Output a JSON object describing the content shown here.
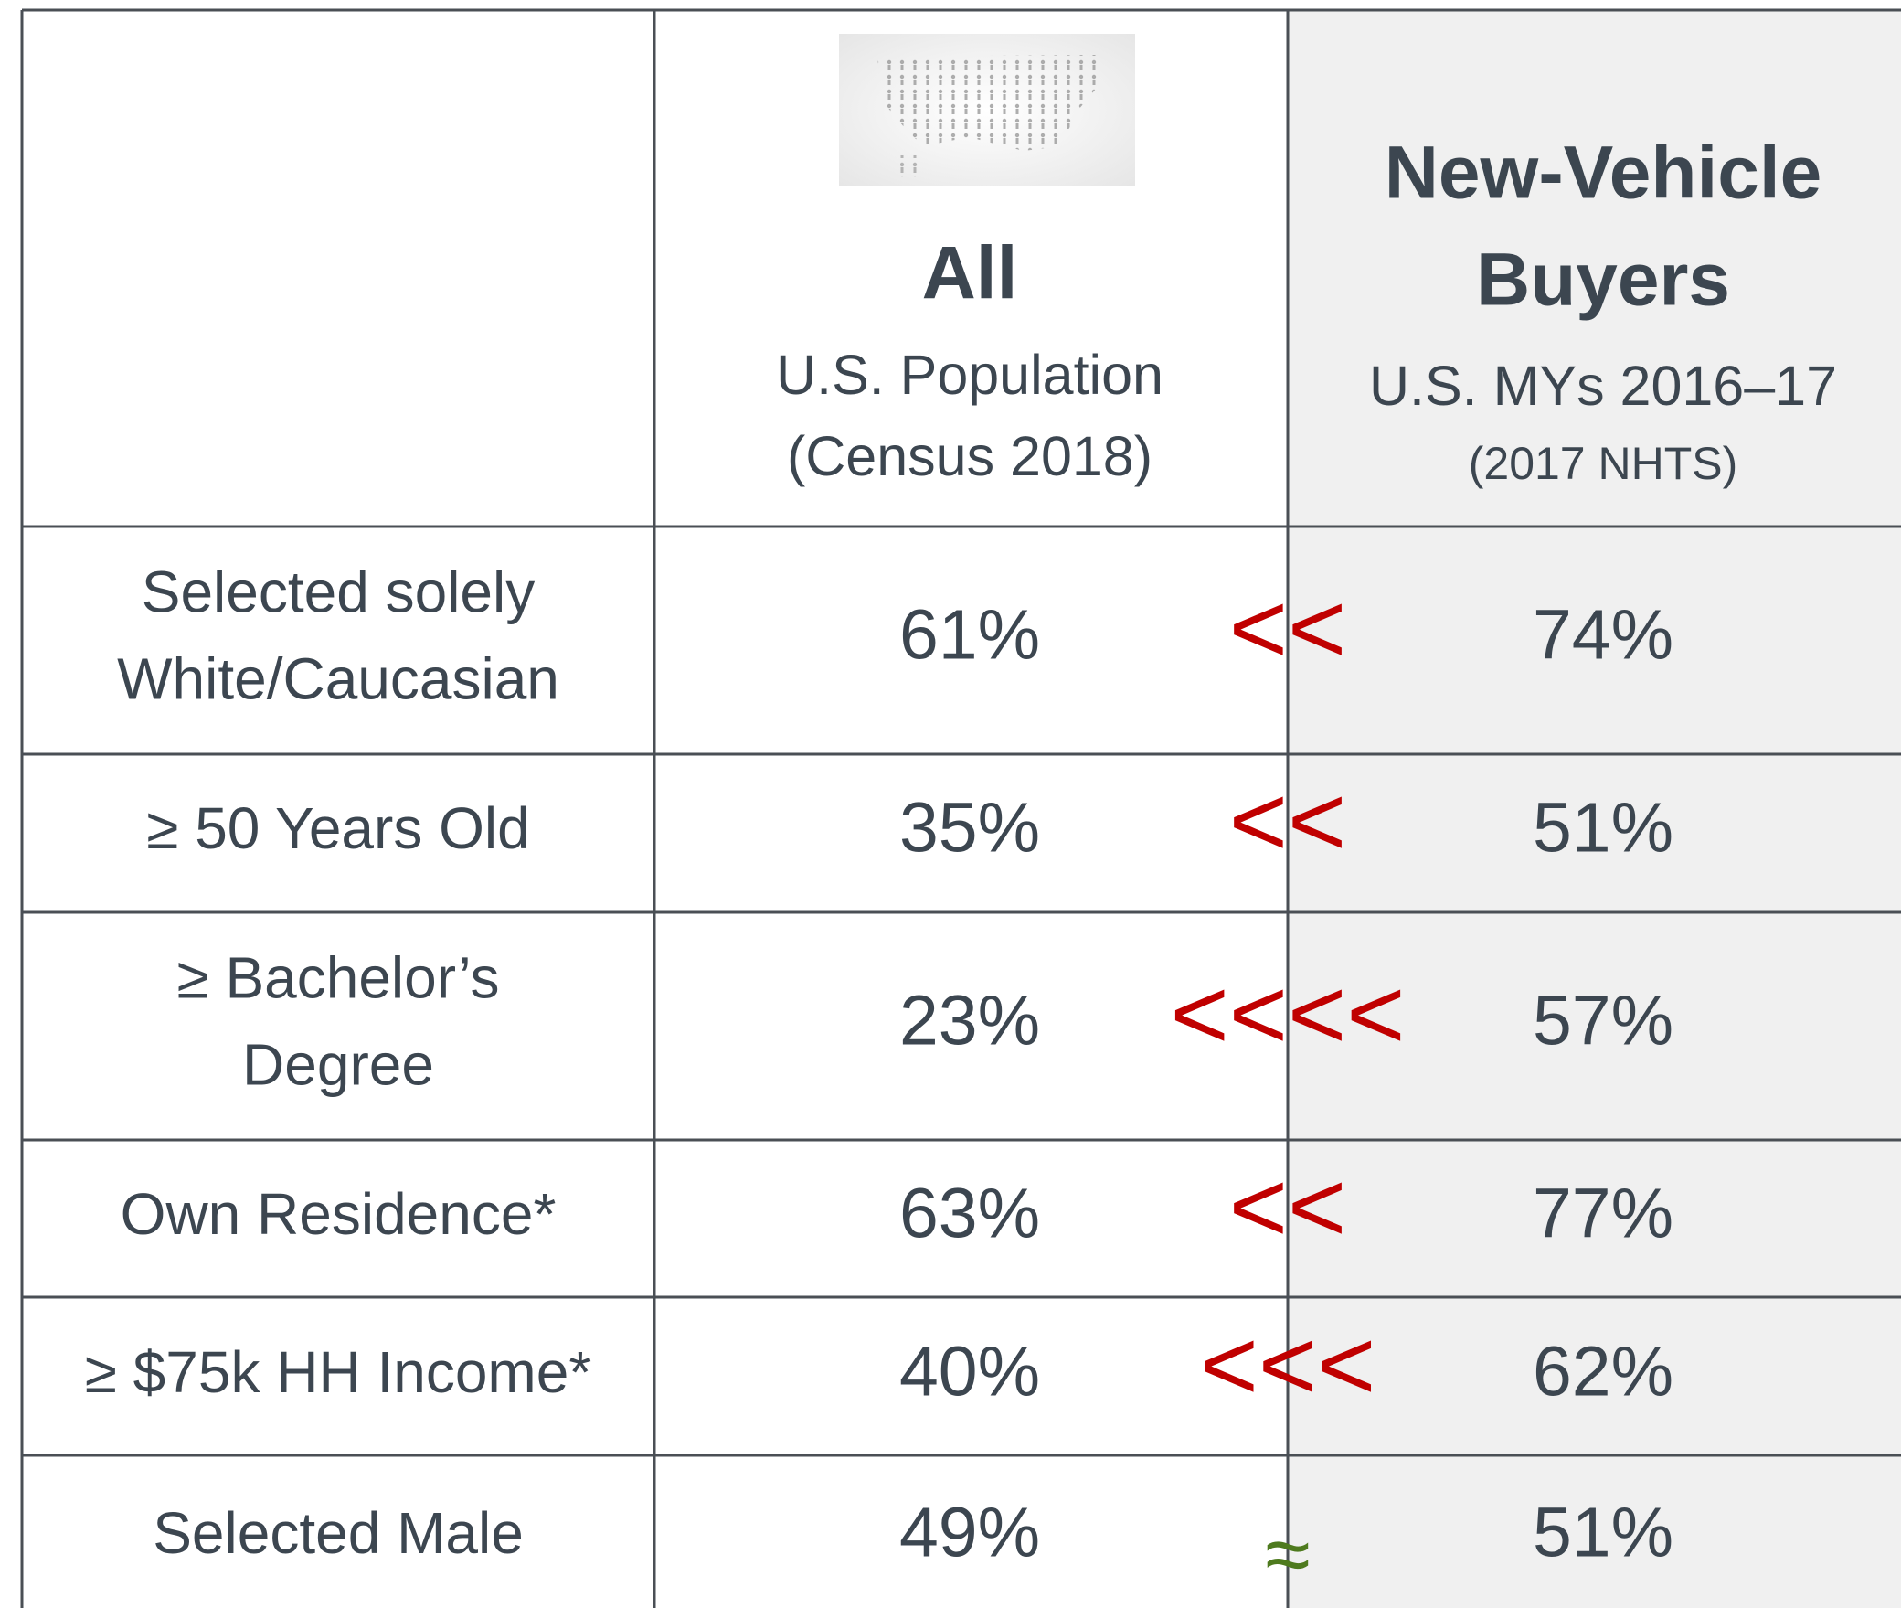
{
  "header": {
    "col2": {
      "title": "All",
      "subtitle": "U.S. Population",
      "note": "(Census 2018)"
    },
    "col3": {
      "title": [
        "New-Vehicle",
        "Buyers"
      ],
      "subtitle": "U.S. MYs 2016–17",
      "note": "(2017 NHTS)"
    }
  },
  "table": {
    "rows": [
      {
        "label": [
          "Selected solely",
          "White/Caucasian"
        ],
        "all": "61%",
        "compare": "<<",
        "buyers": "74%"
      },
      {
        "label": [
          "≥ 50 Years Old"
        ],
        "all": "35%",
        "compare": "<<",
        "buyers": "51%"
      },
      {
        "label": [
          "≥ Bachelor’s",
          "Degree"
        ],
        "all": "23%",
        "compare": "<<<<",
        "buyers": "57%"
      },
      {
        "label": [
          "Own Residence*"
        ],
        "all": "63%",
        "compare": "<<",
        "buyers": "77%"
      },
      {
        "label": [
          "≥ $75k HH Income*"
        ],
        "all": "40%",
        "compare": "<<<",
        "buyers": "62%"
      },
      {
        "label": [
          "Selected Male"
        ],
        "all": "49%",
        "compare": "≈",
        "buyers": "51%"
      }
    ]
  }
}
